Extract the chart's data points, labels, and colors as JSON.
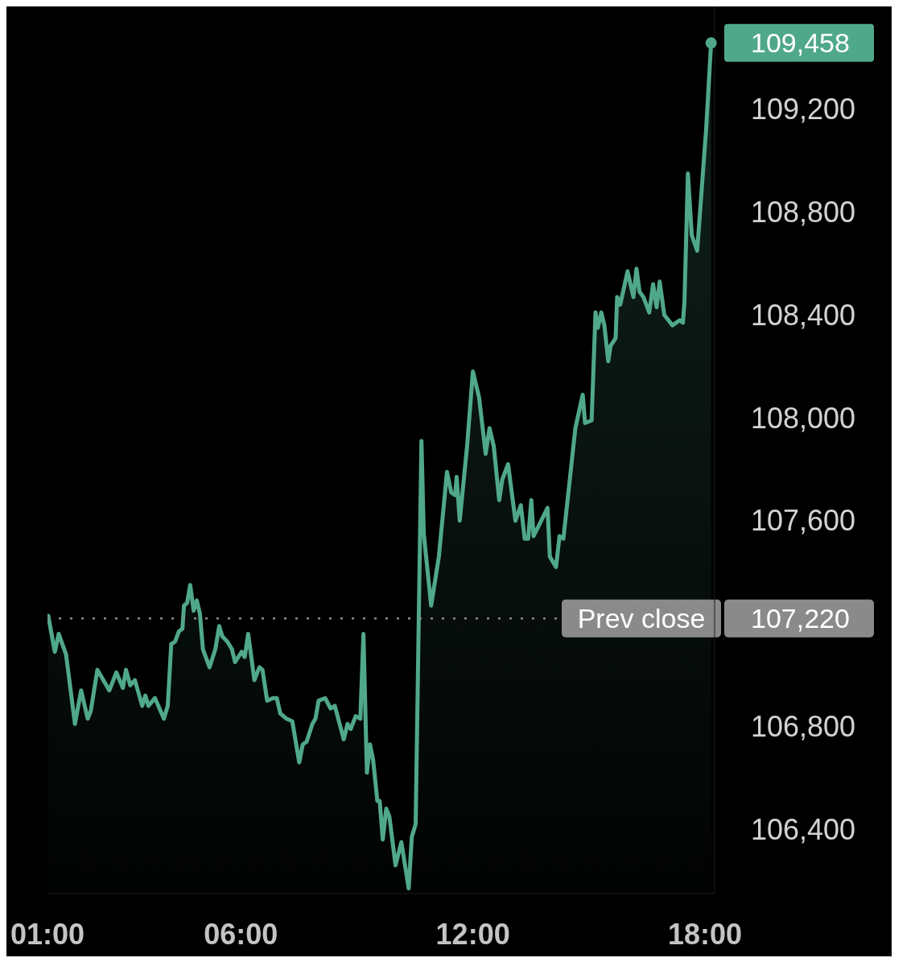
{
  "chart_data": {
    "type": "area",
    "color": "#50a88a",
    "x": [
      1.02,
      1.19,
      1.29,
      1.48,
      1.71,
      1.87,
      2.04,
      2.12,
      2.29,
      2.6,
      2.78,
      2.95,
      3.03,
      3.14,
      3.26,
      3.45,
      3.53,
      3.61,
      3.78,
      4.01,
      4.11,
      4.2,
      4.3,
      4.4,
      4.49,
      4.53,
      4.61,
      4.69,
      4.78,
      4.86,
      4.94,
      5.02,
      5.19,
      5.34,
      5.44,
      5.52,
      5.65,
      5.77,
      5.85,
      6.02,
      6.1,
      6.19,
      6.35,
      6.48,
      6.56,
      6.68,
      6.83,
      6.93,
      7.02,
      7.18,
      7.33,
      7.51,
      7.6,
      7.7,
      7.85,
      7.93,
      8.01,
      8.18,
      8.32,
      8.43,
      8.66,
      8.76,
      8.84,
      8.97,
      9.09,
      9.17,
      9.26,
      9.34,
      9.42,
      9.53,
      9.59,
      9.67,
      9.76,
      9.84,
      10.0,
      10.15,
      10.34,
      10.42,
      10.52,
      10.67,
      10.73,
      10.92,
      11.12,
      11.33,
      11.44,
      11.54,
      11.58,
      11.66,
      11.85,
      12.0,
      12.16,
      12.33,
      12.43,
      12.54,
      12.68,
      12.76,
      12.91,
      13.1,
      13.24,
      13.34,
      13.43,
      13.51,
      13.57,
      13.93,
      13.99,
      14.15,
      14.24,
      14.34,
      14.65,
      14.84,
      14.9,
      15.07,
      15.17,
      15.23,
      15.32,
      15.4,
      15.5,
      15.56,
      15.69,
      15.73,
      15.81,
      16.0,
      16.15,
      16.23,
      16.31,
      16.41,
      16.56,
      16.66,
      16.75,
      16.83,
      16.95,
      17.16,
      17.35,
      17.43,
      17.47,
      17.56,
      17.66,
      17.8,
      18.03,
      18.16
    ],
    "values": [
      107230,
      107090,
      107160,
      107080,
      106810,
      106940,
      106830,
      106860,
      107020,
      106940,
      107010,
      106950,
      107020,
      106960,
      106980,
      106880,
      106920,
      106880,
      106910,
      106830,
      106880,
      107120,
      107130,
      107170,
      107180,
      107270,
      107280,
      107350,
      107250,
      107290,
      107240,
      107100,
      107030,
      107100,
      107190,
      107150,
      107130,
      107100,
      107050,
      107090,
      107070,
      107160,
      106980,
      107030,
      107020,
      106900,
      106910,
      106910,
      106850,
      106830,
      106820,
      106660,
      106730,
      106740,
      106810,
      106830,
      106900,
      106910,
      106870,
      106880,
      106750,
      106810,
      106790,
      106840,
      106830,
      107160,
      106620,
      106730,
      106670,
      106510,
      106510,
      106360,
      106480,
      106450,
      106260,
      106350,
      106170,
      106370,
      106420,
      107910,
      107550,
      107270,
      107460,
      107790,
      107710,
      107700,
      107770,
      107600,
      107890,
      108180,
      108080,
      107860,
      107960,
      107890,
      107680,
      107760,
      107820,
      107600,
      107660,
      107530,
      107530,
      107680,
      107540,
      107650,
      107460,
      107420,
      107540,
      107530,
      107960,
      108090,
      107980,
      107990,
      108410,
      108350,
      108410,
      108360,
      108220,
      108280,
      108310,
      108470,
      108440,
      108570,
      108470,
      108580,
      108490,
      108470,
      108410,
      108520,
      108430,
      108530,
      108400,
      108360,
      108380,
      108370,
      108450,
      108950,
      108710,
      108650,
      109120,
      109458
    ],
    "xlim": [
      1,
      18.25
    ],
    "xticks": [
      {
        "value": 1,
        "label": "01:00"
      },
      {
        "value": 6,
        "label": "06:00"
      },
      {
        "value": 12,
        "label": "12:00"
      },
      {
        "value": 18,
        "label": "18:00"
      }
    ],
    "ylim": [
      106150,
      109600
    ],
    "yticks": [
      {
        "value": 106400,
        "label": "106,400"
      },
      {
        "value": 106800,
        "label": "106,800"
      },
      {
        "value": 107220,
        "label": "107,220"
      },
      {
        "value": 107600,
        "label": "107,600"
      },
      {
        "value": 108000,
        "label": "108,000"
      },
      {
        "value": 108400,
        "label": "108,400"
      },
      {
        "value": 108800,
        "label": "108,800"
      },
      {
        "value": 109200,
        "label": "109,200"
      }
    ],
    "ref_lines": [
      {
        "axis": "y",
        "value": 107220,
        "label": "Prev close",
        "color": "#8a8a8a",
        "line_style": "dotted"
      }
    ],
    "annotations": [
      {
        "text": "109,458",
        "x": 18.16,
        "y": 109458
      }
    ]
  }
}
